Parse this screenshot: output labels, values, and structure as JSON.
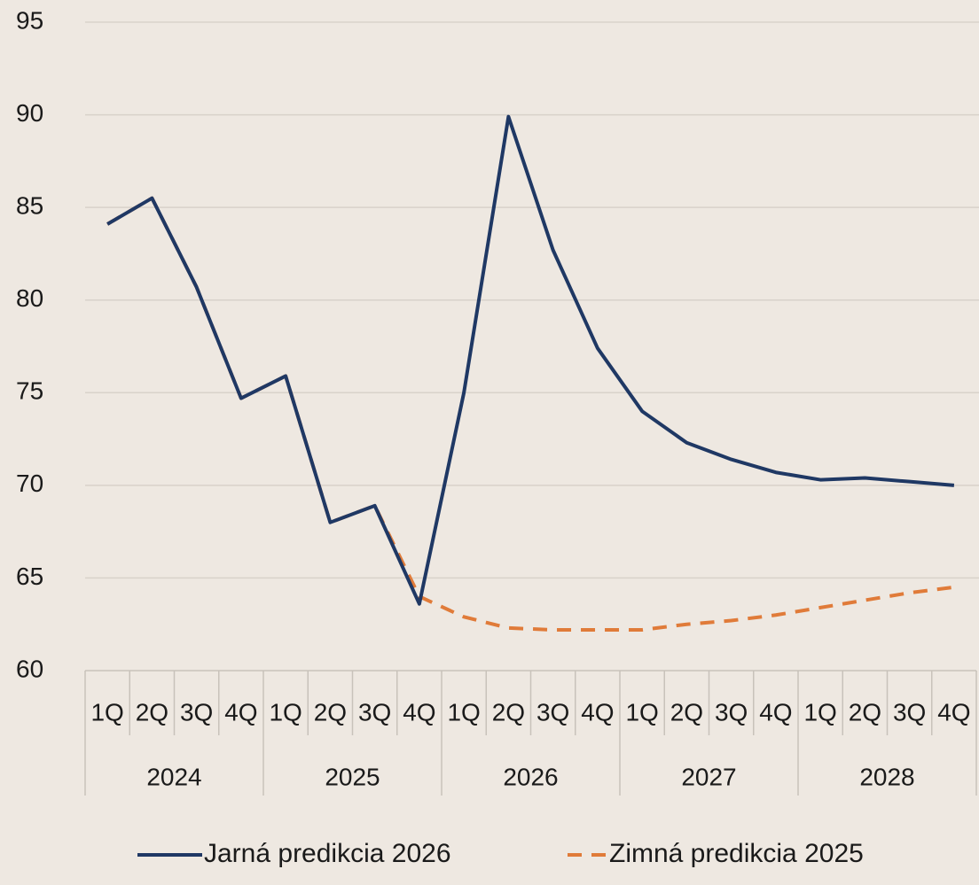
{
  "chart_data": {
    "type": "line",
    "categories": [
      "1Q",
      "2Q",
      "3Q",
      "4Q",
      "1Q",
      "2Q",
      "3Q",
      "4Q",
      "1Q",
      "2Q",
      "3Q",
      "4Q",
      "1Q",
      "2Q",
      "3Q",
      "4Q",
      "1Q",
      "2Q",
      "3Q",
      "4Q"
    ],
    "groups": [
      "2024",
      "2025",
      "2026",
      "2027",
      "2028"
    ],
    "series": [
      {
        "name": "Jarná predikcia 2026",
        "color": "#1f3864",
        "dashed": false,
        "values": [
          84.1,
          85.5,
          80.7,
          74.7,
          75.9,
          68.0,
          68.9,
          63.6,
          75.0,
          89.9,
          82.7,
          77.4,
          74.0,
          72.3,
          71.4,
          70.7,
          70.3,
          70.4,
          70.2,
          70.0
        ]
      },
      {
        "name": "Zimná predikcia 2025",
        "color": "#e07b39",
        "dashed": true,
        "values": [
          84.1,
          85.5,
          80.7,
          74.7,
          75.9,
          68.0,
          68.9,
          64.0,
          62.9,
          62.3,
          62.2,
          62.2,
          62.2,
          62.5,
          62.7,
          63.0,
          63.4,
          63.8,
          64.2,
          64.5
        ]
      }
    ],
    "ylim": [
      60,
      95
    ],
    "yticks": [
      60,
      65,
      70,
      75,
      80,
      85,
      90,
      95
    ],
    "grid": true,
    "legend": "bottom"
  }
}
